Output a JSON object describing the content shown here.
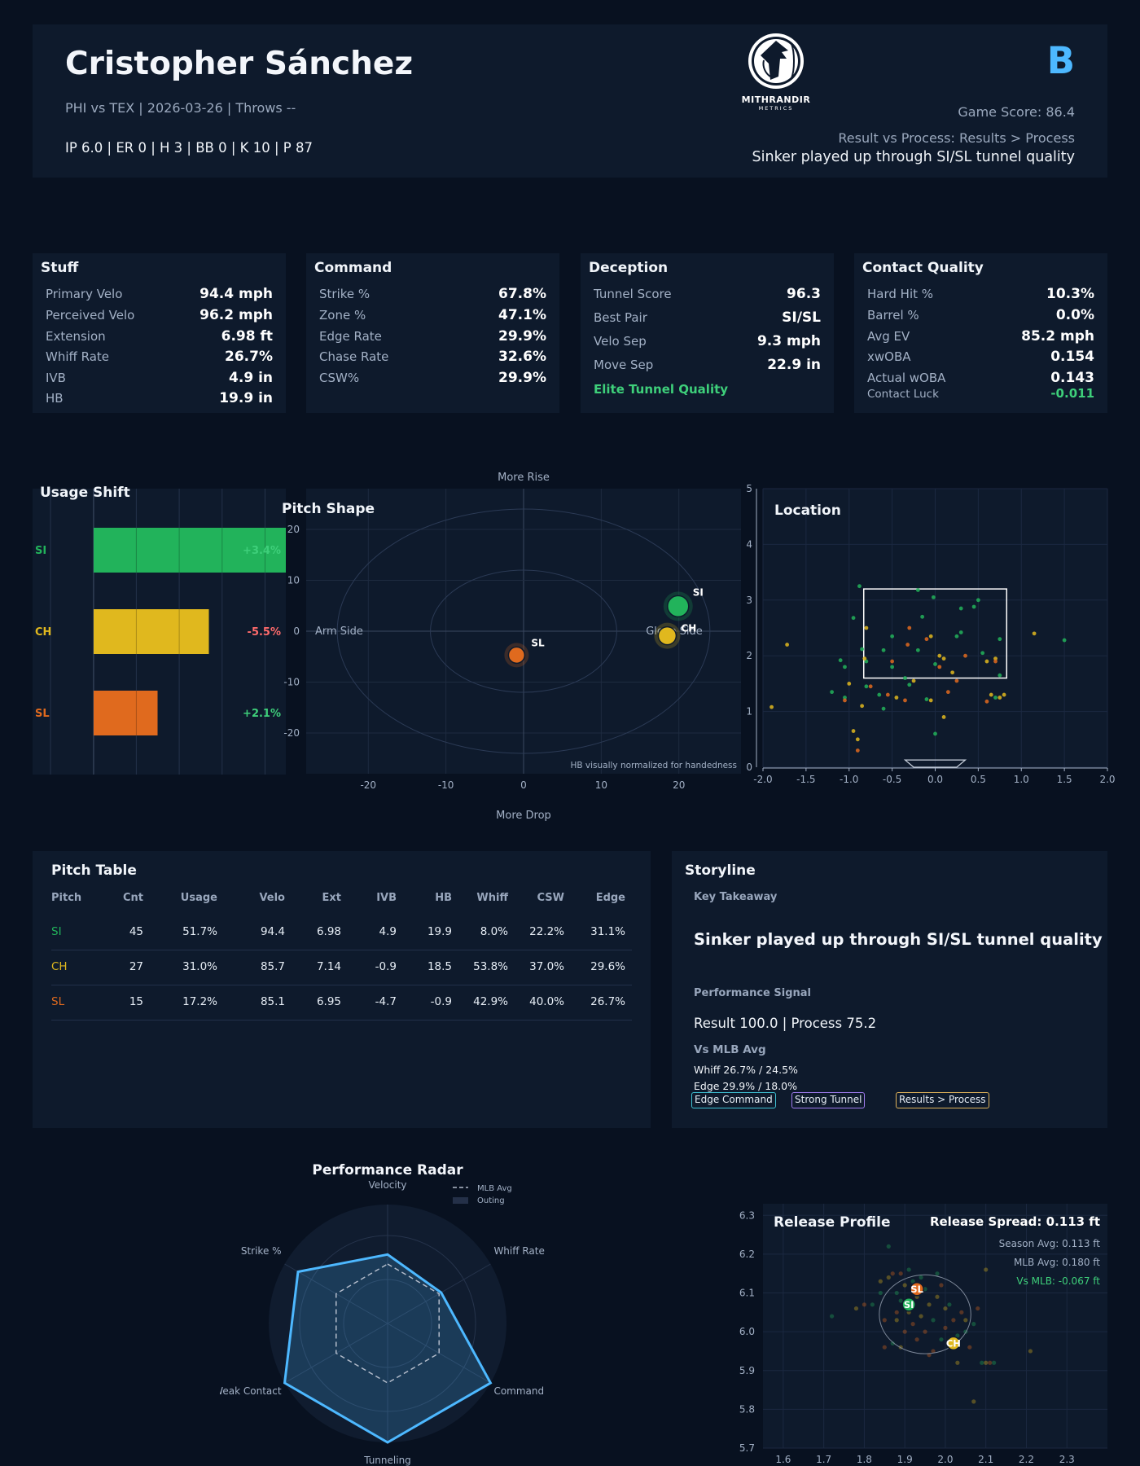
{
  "header": {
    "name": "Cristopher Sánchez",
    "subtitle": "PHI vs TEX | 2026-03-26 | Throws --",
    "line": "IP 6.0 | ER 0 | H 3 | BB 0 | K 10 | P 87",
    "logo_text": "MITHRANDIR",
    "logo_sub": "METRICS",
    "grade": "B",
    "game_score": "Game Score: 86.4",
    "result_process": "Result vs Process: Results > Process",
    "headline": "Sinker played up through SI/SL tunnel quality"
  },
  "colors": {
    "SI": "#22b35b",
    "CH": "#e0b81e",
    "SL": "#e06a1e",
    "accent": "#4db8ff",
    "good": "#3ecf7a",
    "bad": "#ff6b6b"
  },
  "cards": [
    {
      "title": "Stuff",
      "rows": [
        {
          "label": "Primary Velo",
          "value": "94.4 mph"
        },
        {
          "label": "Perceived Velo",
          "value": "96.2 mph"
        },
        {
          "label": "Extension",
          "value": "6.98 ft"
        },
        {
          "label": "Whiff Rate",
          "value": "26.7%"
        },
        {
          "label": "IVB",
          "value": "4.9 in"
        },
        {
          "label": "HB",
          "value": "19.9 in"
        }
      ]
    },
    {
      "title": "Command",
      "rows": [
        {
          "label": "Strike %",
          "value": "67.8%"
        },
        {
          "label": "Zone %",
          "value": "47.1%"
        },
        {
          "label": "Edge Rate",
          "value": "29.9%"
        },
        {
          "label": "Chase Rate",
          "value": "32.6%"
        },
        {
          "label": "CSW%",
          "value": "29.9%"
        }
      ]
    },
    {
      "title": "Deception",
      "rows": [
        {
          "label": "Tunnel Score",
          "value": "96.3"
        },
        {
          "label": "Best Pair",
          "value": "SI/SL"
        },
        {
          "label": "Velo Sep",
          "value": "9.3 mph"
        },
        {
          "label": "Move Sep",
          "value": "22.9 in"
        }
      ],
      "note": "Elite Tunnel Quality"
    },
    {
      "title": "Contact Quality",
      "rows": [
        {
          "label": "Hard Hit %",
          "value": "10.3%"
        },
        {
          "label": "Barrel %",
          "value": "0.0%"
        },
        {
          "label": "Avg EV",
          "value": "85.2 mph"
        },
        {
          "label": "xwOBA",
          "value": "0.154"
        },
        {
          "label": "Actual wOBA",
          "value": "0.143"
        }
      ],
      "luck_label": "Contact Luck",
      "luck_value": "-0.011"
    }
  ],
  "usage": {
    "title": "Usage Shift",
    "items": [
      {
        "pitch": "SI",
        "usage": 51.7,
        "delta": "+3.4%"
      },
      {
        "pitch": "CH",
        "usage": 31.0,
        "delta": "-5.5%"
      },
      {
        "pitch": "SL",
        "usage": 17.2,
        "delta": "+2.1%"
      }
    ]
  },
  "shape": {
    "title": "Pitch Shape",
    "top_label": "More Rise",
    "bottom_label": "More Drop",
    "left_label": "Arm Side",
    "right_label": "Glove Side",
    "note": "HB visually normalized for handedness",
    "x_ticks": [
      "-20",
      "-10",
      "0",
      "10",
      "20"
    ],
    "y_ticks": [
      "20",
      "10",
      "0",
      "-10",
      "-20"
    ]
  },
  "location": {
    "title": "Location",
    "x_ticks": [
      "-2.0",
      "-1.5",
      "-1.0",
      "-0.5",
      "0.0",
      "0.5",
      "1.0",
      "1.5",
      "2.0"
    ],
    "y_ticks": [
      "0",
      "1",
      "2",
      "3",
      "4",
      "5"
    ]
  },
  "table": {
    "title": "Pitch Table",
    "headers": [
      "Pitch",
      "Cnt",
      "Usage",
      "Velo",
      "Ext",
      "IVB",
      "HB",
      "Whiff",
      "CSW",
      "Edge"
    ],
    "rows": [
      [
        "SI",
        "45",
        "51.7%",
        "94.4",
        "6.98",
        "4.9",
        "19.9",
        "8.0%",
        "22.2%",
        "31.1%"
      ],
      [
        "CH",
        "27",
        "31.0%",
        "85.7",
        "7.14",
        "-0.9",
        "18.5",
        "53.8%",
        "37.0%",
        "29.6%"
      ],
      [
        "SL",
        "15",
        "17.2%",
        "85.1",
        "6.95",
        "-4.7",
        "-0.9",
        "42.9%",
        "40.0%",
        "26.7%"
      ]
    ]
  },
  "storyline": {
    "title": "Storyline",
    "key_label": "Key Takeaway",
    "key_text": "Sinker played up through SI/SL tunnel quality",
    "signal_label": "Performance Signal",
    "signal_text": "Result 100.0 | Process 75.2",
    "mlb_label": "Vs MLB Avg",
    "mlb_line1": "Whiff 26.7% / 24.5%",
    "mlb_line2": "Edge 29.9% / 18.0%",
    "badges": [
      "Edge Command",
      "Strong Tunnel",
      "Results > Process"
    ]
  },
  "radar": {
    "title": "Performance Radar",
    "legend_mlb": "MLB Avg",
    "legend_outing": "Outing",
    "axes": [
      "Velocity",
      "Whiff Rate",
      "Command",
      "Tunneling",
      "Weak Contact",
      "Strike %"
    ]
  },
  "release": {
    "title": "Release Profile",
    "spread": "Release Spread: 0.113 ft",
    "season": "Season Avg: 0.113 ft",
    "mlb": "MLB Avg: 0.180 ft",
    "vs": "Vs MLB: -0.067 ft",
    "x_ticks": [
      "1.6",
      "1.7",
      "1.8",
      "1.9",
      "2.0",
      "2.1",
      "2.2",
      "2.3"
    ],
    "y_ticks": [
      "6.3",
      "6.2",
      "6.1",
      "6.0",
      "5.9",
      "5.8",
      "5.7"
    ]
  },
  "chart_data": [
    {
      "type": "bar",
      "title": "Usage Shift",
      "categories": [
        "SI",
        "CH",
        "SL"
      ],
      "series": [
        {
          "values": [
            51.7,
            31.0,
            17.2
          ]
        }
      ],
      "annotations": [
        "+3.4%",
        "-5.5%",
        "+2.1%"
      ]
    },
    {
      "type": "scatter",
      "title": "Pitch Shape",
      "xlim": [
        -28,
        28
      ],
      "ylim": [
        -28,
        28
      ],
      "points": [
        {
          "label": "SI",
          "x": 19.9,
          "y": 4.9
        },
        {
          "label": "CH",
          "x": 18.5,
          "y": -0.9
        },
        {
          "label": "SL",
          "x": -0.9,
          "y": -4.7
        }
      ]
    },
    {
      "type": "scatter",
      "title": "Location",
      "xlim": [
        -2.0,
        2.0
      ],
      "ylim": [
        0,
        5
      ],
      "strike_zone": {
        "x": [
          -0.83,
          0.83
        ],
        "y": [
          1.6,
          3.2
        ]
      },
      "points": [
        {
          "p": "SI",
          "x": -0.88,
          "y": 3.25
        },
        {
          "p": "SI",
          "x": -0.2,
          "y": 3.18
        },
        {
          "p": "SI",
          "x": -0.02,
          "y": 3.05
        },
        {
          "p": "SI",
          "x": 0.5,
          "y": 3.0
        },
        {
          "p": "SI",
          "x": 0.45,
          "y": 2.88
        },
        {
          "p": "SI",
          "x": 0.3,
          "y": 2.85
        },
        {
          "p": "SI",
          "x": -0.95,
          "y": 2.68
        },
        {
          "p": "SI",
          "x": -0.15,
          "y": 2.7
        },
        {
          "p": "SI",
          "x": 0.3,
          "y": 2.42
        },
        {
          "p": "SI",
          "x": 0.25,
          "y": 2.35
        },
        {
          "p": "SI",
          "x": -0.5,
          "y": 2.35
        },
        {
          "p": "SI",
          "x": 0.75,
          "y": 2.3
        },
        {
          "p": "SI",
          "x": 1.5,
          "y": 2.28
        },
        {
          "p": "SI",
          "x": -0.85,
          "y": 2.12
        },
        {
          "p": "SI",
          "x": -0.6,
          "y": 2.1
        },
        {
          "p": "SI",
          "x": -0.2,
          "y": 2.1
        },
        {
          "p": "SI",
          "x": 0.55,
          "y": 2.05
        },
        {
          "p": "SI",
          "x": -1.1,
          "y": 1.92
        },
        {
          "p": "SI",
          "x": -0.8,
          "y": 1.9
        },
        {
          "p": "SI",
          "x": -1.05,
          "y": 1.8
        },
        {
          "p": "SI",
          "x": -0.5,
          "y": 1.8
        },
        {
          "p": "SI",
          "x": 0.0,
          "y": 1.85
        },
        {
          "p": "SI",
          "x": -0.35,
          "y": 1.6
        },
        {
          "p": "SI",
          "x": -0.8,
          "y": 1.45
        },
        {
          "p": "SI",
          "x": -0.65,
          "y": 1.3
        },
        {
          "p": "SI",
          "x": -0.1,
          "y": 1.22
        },
        {
          "p": "SI",
          "x": -1.2,
          "y": 1.35
        },
        {
          "p": "SI",
          "x": -1.05,
          "y": 1.25
        },
        {
          "p": "SI",
          "x": 0.7,
          "y": 1.25
        },
        {
          "p": "SI",
          "x": -0.6,
          "y": 1.05
        },
        {
          "p": "SI",
          "x": 0.0,
          "y": 0.6
        },
        {
          "p": "SI",
          "x": 0.75,
          "y": 1.65
        },
        {
          "p": "SI",
          "x": -0.3,
          "y": 1.48
        },
        {
          "p": "CH",
          "x": -0.8,
          "y": 2.5
        },
        {
          "p": "CH",
          "x": -0.05,
          "y": 2.35
        },
        {
          "p": "CH",
          "x": 0.6,
          "y": 1.9
        },
        {
          "p": "CH",
          "x": 0.7,
          "y": 1.95
        },
        {
          "p": "CH",
          "x": 1.15,
          "y": 2.4
        },
        {
          "p": "CH",
          "x": -1.72,
          "y": 2.2
        },
        {
          "p": "CH",
          "x": -0.82,
          "y": 1.95
        },
        {
          "p": "CH",
          "x": 0.1,
          "y": 1.95
        },
        {
          "p": "CH",
          "x": 0.05,
          "y": 2.0
        },
        {
          "p": "CH",
          "x": -1.0,
          "y": 1.5
        },
        {
          "p": "CH",
          "x": -0.85,
          "y": 1.1
        },
        {
          "p": "CH",
          "x": -0.45,
          "y": 1.25
        },
        {
          "p": "CH",
          "x": -0.05,
          "y": 1.2
        },
        {
          "p": "CH",
          "x": 0.75,
          "y": 1.25
        },
        {
          "p": "CH",
          "x": 0.8,
          "y": 1.3
        },
        {
          "p": "CH",
          "x": 0.2,
          "y": 1.7
        },
        {
          "p": "CH",
          "x": 0.1,
          "y": 0.9
        },
        {
          "p": "CH",
          "x": 0.65,
          "y": 1.3
        },
        {
          "p": "CH",
          "x": -0.25,
          "y": 1.55
        },
        {
          "p": "CH",
          "x": -1.9,
          "y": 1.08
        },
        {
          "p": "CH",
          "x": -0.95,
          "y": 0.65
        },
        {
          "p": "CH",
          "x": -0.9,
          "y": 0.5
        },
        {
          "p": "SL",
          "x": -0.3,
          "y": 2.5
        },
        {
          "p": "SL",
          "x": -0.32,
          "y": 2.2
        },
        {
          "p": "SL",
          "x": -0.55,
          "y": 1.3
        },
        {
          "p": "SL",
          "x": -1.05,
          "y": 1.2
        },
        {
          "p": "SL",
          "x": -0.35,
          "y": 1.2
        },
        {
          "p": "SL",
          "x": 0.6,
          "y": 1.18
        },
        {
          "p": "SL",
          "x": 0.25,
          "y": 1.55
        },
        {
          "p": "SL",
          "x": -0.9,
          "y": 0.3
        },
        {
          "p": "SL",
          "x": 0.7,
          "y": 1.9
        },
        {
          "p": "SL",
          "x": 0.05,
          "y": 1.8
        },
        {
          "p": "SL",
          "x": -0.75,
          "y": 1.45
        },
        {
          "p": "SL",
          "x": 0.35,
          "y": 2.0
        },
        {
          "p": "SL",
          "x": -0.1,
          "y": 2.3
        },
        {
          "p": "SL",
          "x": -0.5,
          "y": 1.9
        },
        {
          "p": "SL",
          "x": 0.15,
          "y": 1.35
        }
      ]
    },
    {
      "type": "radar",
      "title": "Performance Radar",
      "axes": [
        "Velocity",
        "Whiff Rate",
        "Command",
        "Tunneling",
        "Weak Contact",
        "Strike %"
      ],
      "series": [
        {
          "name": "Outing",
          "values": [
            0.58,
            0.52,
            1.0,
            1.0,
            1.0,
            0.87
          ]
        },
        {
          "name": "MLB Avg",
          "values": [
            0.5,
            0.5,
            0.5,
            0.5,
            0.5,
            0.5
          ]
        }
      ]
    },
    {
      "type": "scatter",
      "title": "Release Profile",
      "xlim": [
        1.55,
        2.4
      ],
      "ylim": [
        5.7,
        6.33
      ],
      "markers": [
        {
          "label": "SL",
          "x": 1.93,
          "y": 6.11
        },
        {
          "label": "SI",
          "x": 1.91,
          "y": 6.07
        },
        {
          "label": "CH",
          "x": 2.02,
          "y": 5.97
        }
      ],
      "spread_circle": {
        "cx": 1.95,
        "cy": 6.045,
        "r": 0.113
      },
      "points": [
        [
          1.72,
          6.04
        ],
        [
          1.78,
          6.06
        ],
        [
          1.8,
          6.07
        ],
        [
          1.82,
          6.07
        ],
        [
          1.84,
          6.13
        ],
        [
          1.85,
          6.03
        ],
        [
          1.86,
          6.22
        ],
        [
          1.86,
          6.14
        ],
        [
          1.87,
          6.15
        ],
        [
          1.88,
          6.1
        ],
        [
          1.88,
          6.03
        ],
        [
          1.89,
          6.15
        ],
        [
          1.89,
          6.08
        ],
        [
          1.9,
          6.12
        ],
        [
          1.9,
          6.0
        ],
        [
          1.91,
          6.16
        ],
        [
          1.91,
          6.05
        ],
        [
          1.92,
          6.02
        ],
        [
          1.92,
          6.13
        ],
        [
          1.93,
          6.09
        ],
        [
          1.93,
          5.98
        ],
        [
          1.94,
          6.14
        ],
        [
          1.94,
          6.04
        ],
        [
          1.95,
          6.0
        ],
        [
          1.95,
          6.11
        ],
        [
          1.96,
          6.07
        ],
        [
          1.97,
          5.95
        ],
        [
          1.97,
          6.03
        ],
        [
          1.98,
          6.09
        ],
        [
          1.99,
          6.12
        ],
        [
          1.99,
          5.98
        ],
        [
          2.0,
          6.06
        ],
        [
          2.0,
          6.01
        ],
        [
          2.01,
          6.07
        ],
        [
          2.02,
          5.96
        ],
        [
          2.02,
          6.03
        ],
        [
          2.03,
          5.99
        ],
        [
          2.03,
          5.92
        ],
        [
          2.04,
          6.05
        ],
        [
          2.05,
          6.0
        ],
        [
          2.05,
          6.03
        ],
        [
          2.06,
          5.96
        ],
        [
          2.07,
          6.02
        ],
        [
          2.07,
          5.82
        ],
        [
          2.08,
          6.06
        ],
        [
          2.09,
          5.92
        ],
        [
          2.1,
          5.92
        ],
        [
          2.11,
          5.92
        ],
        [
          2.12,
          5.92
        ],
        [
          2.21,
          5.95
        ],
        [
          1.85,
          5.96
        ],
        [
          1.87,
          5.97
        ],
        [
          1.89,
          5.96
        ],
        [
          1.96,
          5.94
        ],
        [
          1.84,
          6.1
        ],
        [
          2.1,
          6.16
        ],
        [
          1.88,
          6.05
        ],
        [
          1.98,
          6.15
        ]
      ]
    }
  ]
}
